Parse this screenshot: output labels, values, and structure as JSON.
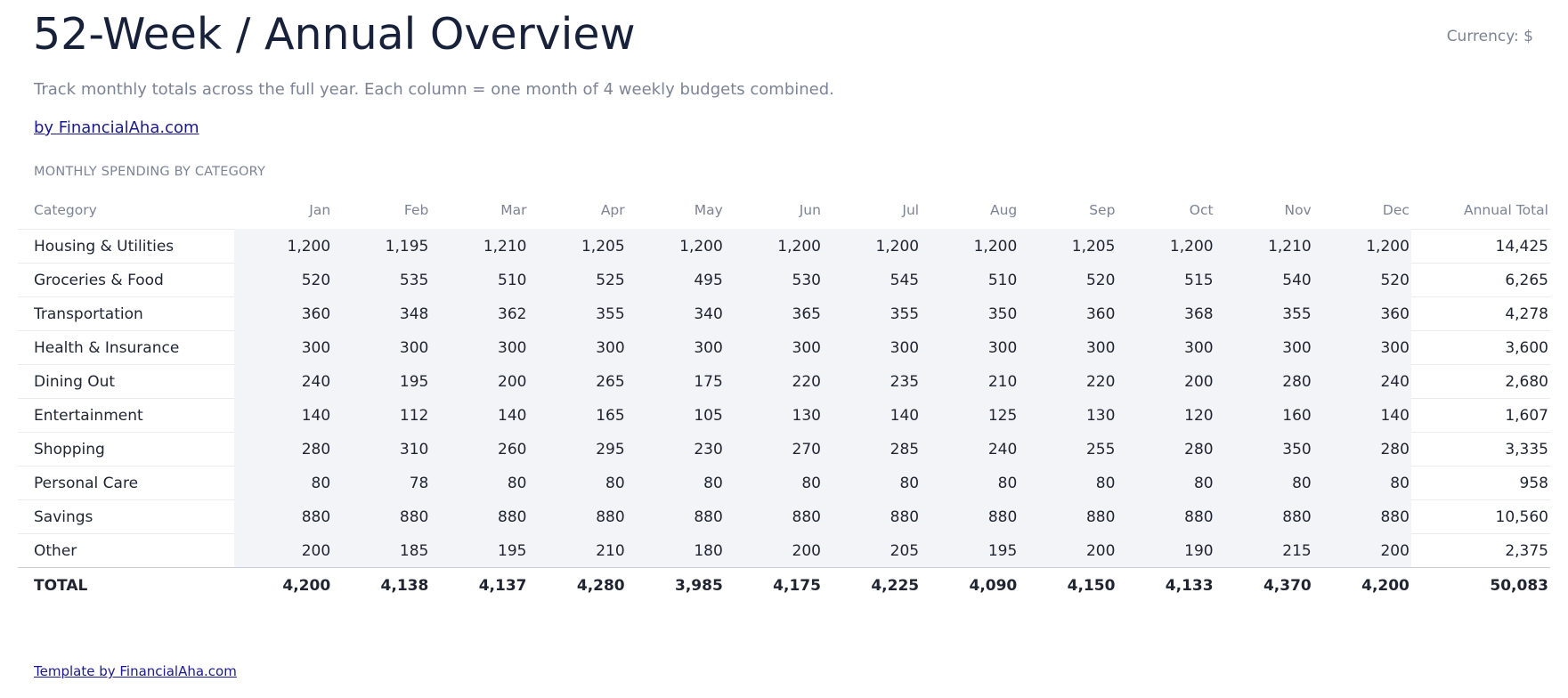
{
  "header": {
    "title": "52-Week / Annual Overview",
    "currency": "Currency: $",
    "subtitle": "Track monthly totals across the full year. Each column = one month of 4 weekly budgets combined.",
    "link": "by FinancialAha.com"
  },
  "section_label": "MONTHLY SPENDING BY CATEGORY",
  "table": {
    "columns": [
      "Category",
      "Jan",
      "Feb",
      "Mar",
      "Apr",
      "May",
      "Jun",
      "Jul",
      "Aug",
      "Sep",
      "Oct",
      "Nov",
      "Dec",
      "Annual Total"
    ],
    "rows": [
      [
        "Housing & Utilities",
        "1,200",
        "1,195",
        "1,210",
        "1,205",
        "1,200",
        "1,200",
        "1,200",
        "1,200",
        "1,205",
        "1,200",
        "1,210",
        "1,200",
        "14,425"
      ],
      [
        "Groceries & Food",
        "520",
        "535",
        "510",
        "525",
        "495",
        "530",
        "545",
        "510",
        "520",
        "515",
        "540",
        "520",
        "6,265"
      ],
      [
        "Transportation",
        "360",
        "348",
        "362",
        "355",
        "340",
        "365",
        "355",
        "350",
        "360",
        "368",
        "355",
        "360",
        "4,278"
      ],
      [
        "Health & Insurance",
        "300",
        "300",
        "300",
        "300",
        "300",
        "300",
        "300",
        "300",
        "300",
        "300",
        "300",
        "300",
        "3,600"
      ],
      [
        "Dining Out",
        "240",
        "195",
        "200",
        "265",
        "175",
        "220",
        "235",
        "210",
        "220",
        "200",
        "280",
        "240",
        "2,680"
      ],
      [
        "Entertainment",
        "140",
        "112",
        "140",
        "165",
        "105",
        "130",
        "140",
        "125",
        "130",
        "120",
        "160",
        "140",
        "1,607"
      ],
      [
        "Shopping",
        "280",
        "310",
        "260",
        "295",
        "230",
        "270",
        "285",
        "240",
        "255",
        "280",
        "350",
        "280",
        "3,335"
      ],
      [
        "Personal Care",
        "80",
        "78",
        "80",
        "80",
        "80",
        "80",
        "80",
        "80",
        "80",
        "80",
        "80",
        "80",
        "958"
      ],
      [
        "Savings",
        "880",
        "880",
        "880",
        "880",
        "880",
        "880",
        "880",
        "880",
        "880",
        "880",
        "880",
        "880",
        "10,560"
      ],
      [
        "Other",
        "200",
        "185",
        "195",
        "210",
        "180",
        "200",
        "205",
        "195",
        "200",
        "190",
        "215",
        "200",
        "2,375"
      ]
    ],
    "total": [
      "TOTAL",
      "4,200",
      "4,138",
      "4,137",
      "4,280",
      "3,985",
      "4,175",
      "4,225",
      "4,090",
      "4,150",
      "4,133",
      "4,370",
      "4,200",
      "50,083"
    ]
  },
  "footer": "Template by FinancialAha.com"
}
